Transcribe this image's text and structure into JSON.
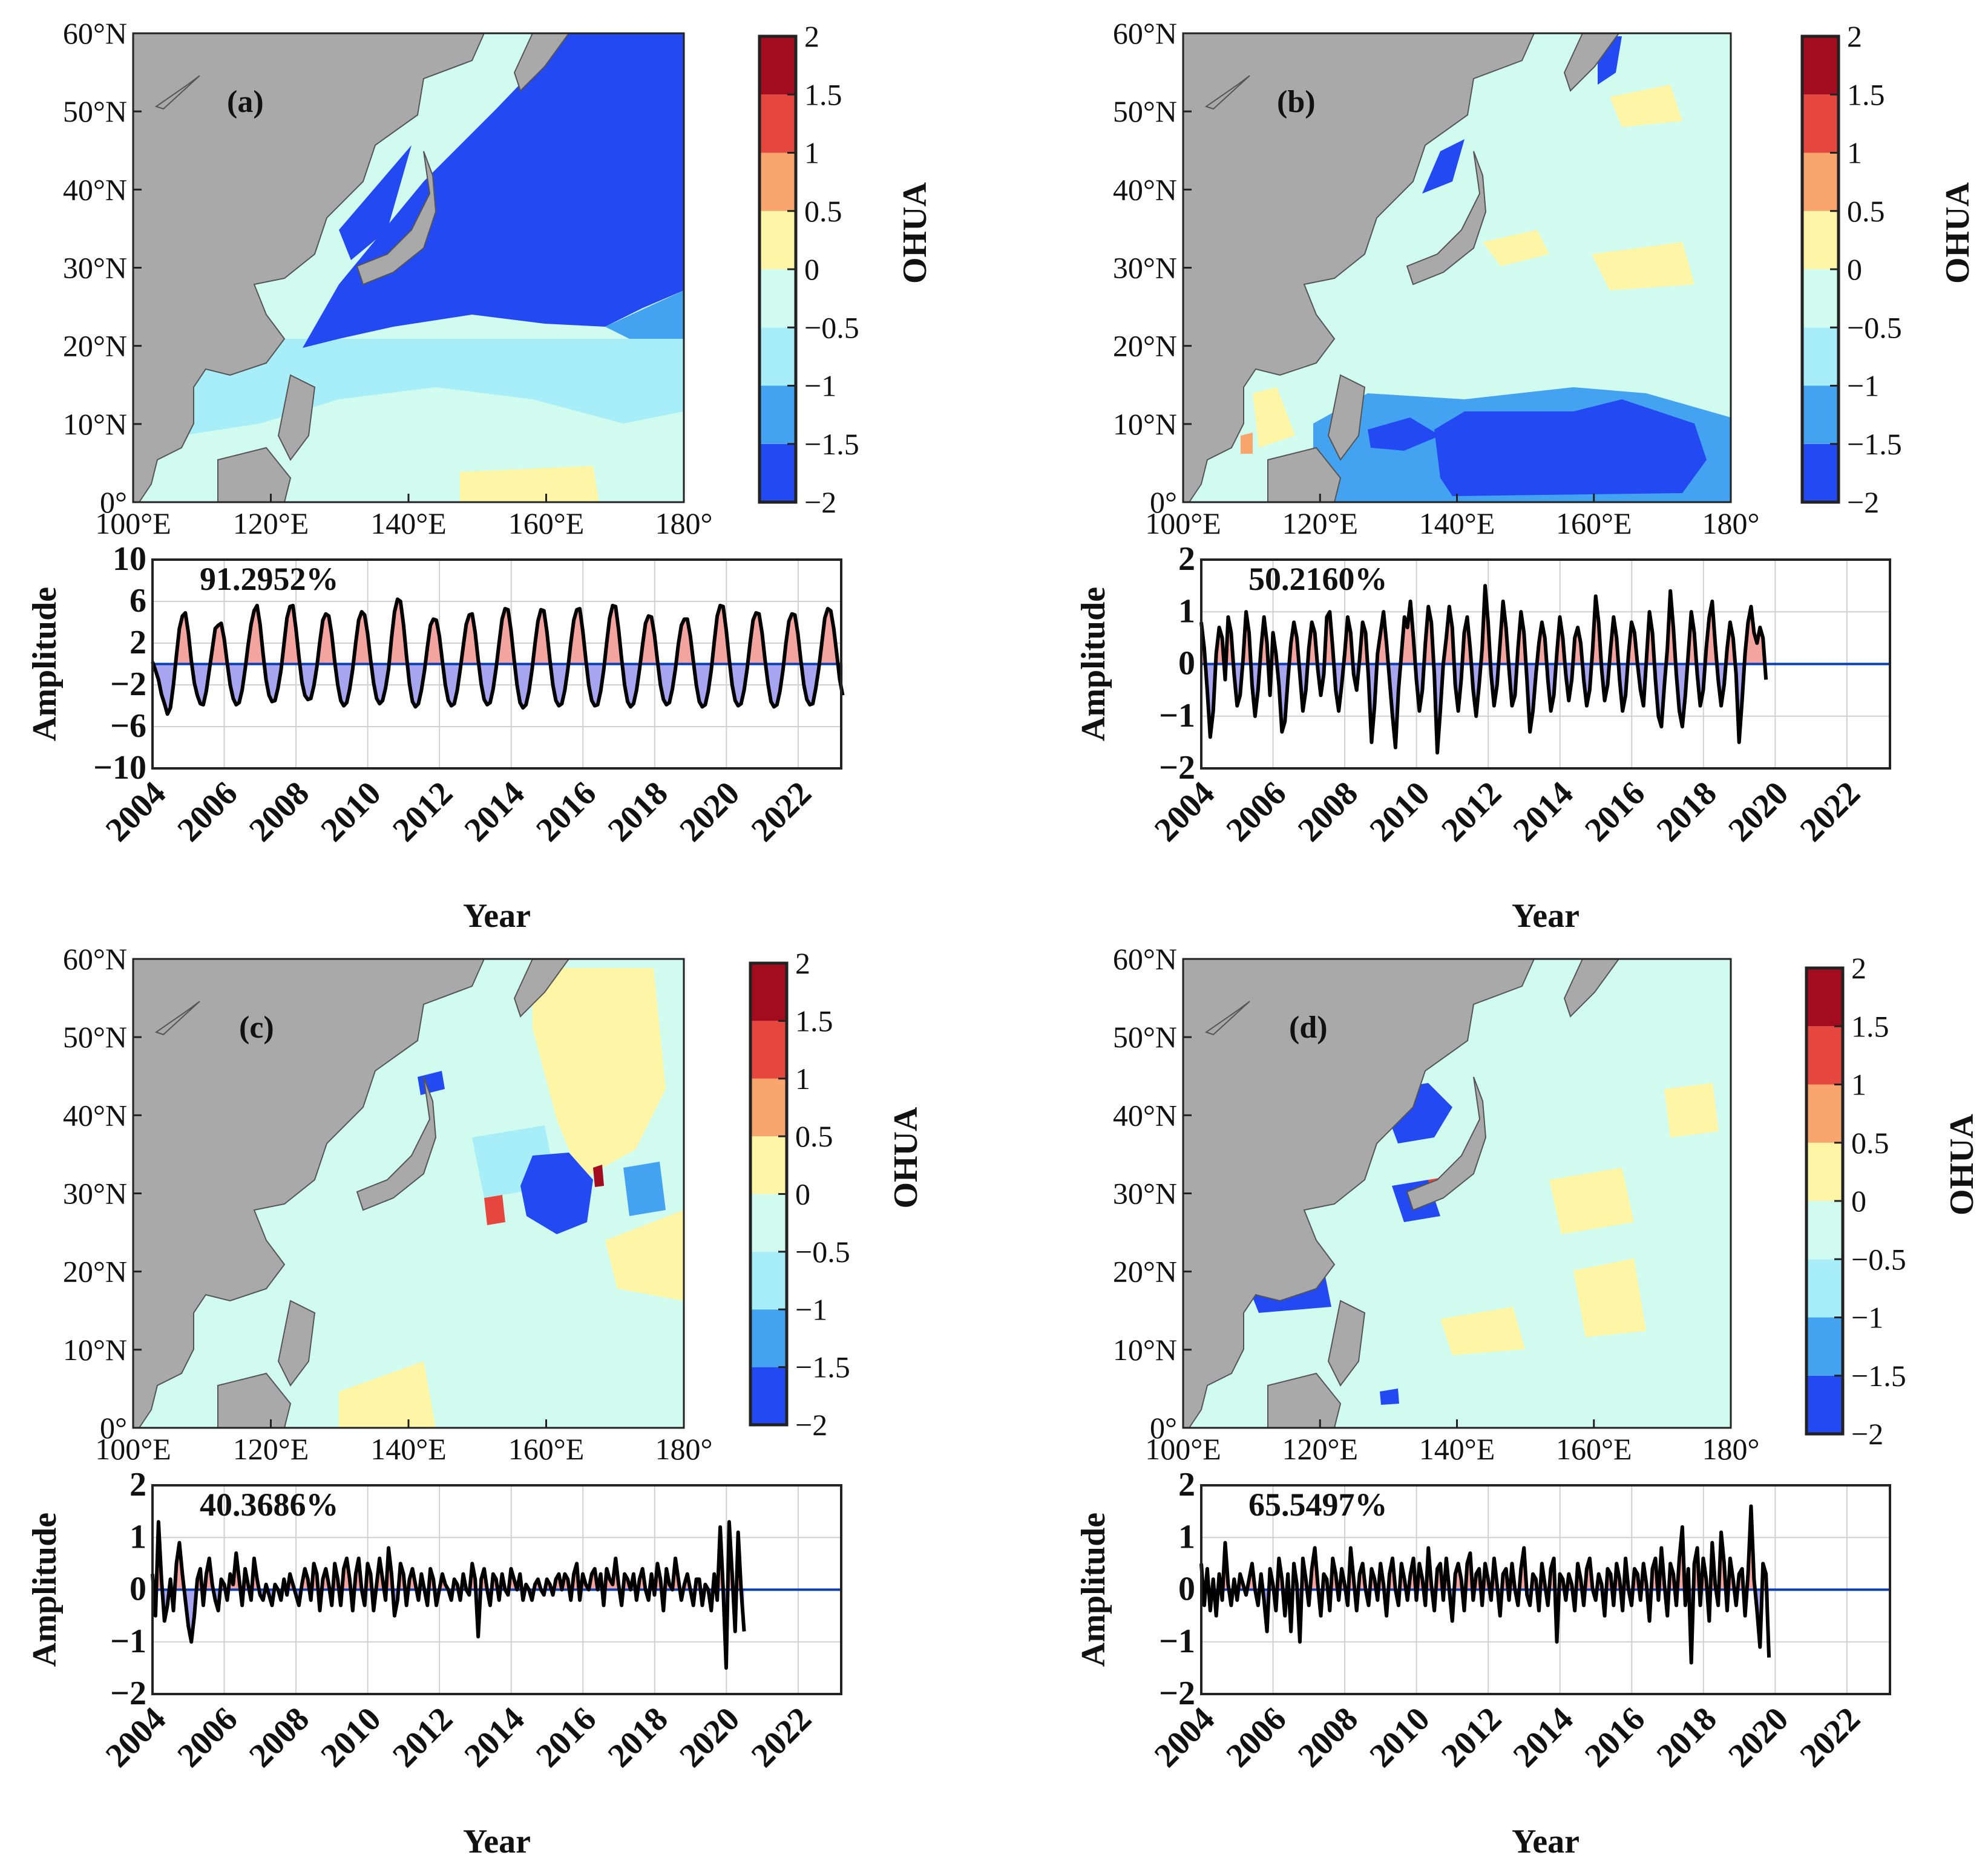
{
  "colors": {
    "land": "#a9a9a9",
    "ocean_nodata": "#ffffff",
    "levels": [
      "#2349f2",
      "#44a3f0",
      "#a7eef9",
      "#d2fbef",
      "#fff5a6",
      "#f9a56e",
      "#e5473e",
      "#a30b1e"
    ],
    "pos_fill": "#f3a49f",
    "neg_fill": "#a7a4f0",
    "line": "#000000",
    "zero_line": "#0b3db5"
  },
  "map_ticks": {
    "lon": [
      "100°E",
      "120°E",
      "140°E",
      "160°E",
      "180°"
    ],
    "lat": [
      "0°",
      "10°N",
      "20°N",
      "30°N",
      "40°N",
      "50°N",
      "60°N"
    ]
  },
  "colorbar": {
    "label": "OHUA",
    "ticks": [
      "−2",
      "−1.5",
      "−1",
      "−0.5",
      "0",
      "0.5",
      "1",
      "1.5",
      "2"
    ]
  },
  "chart_data": [
    {
      "type": "line",
      "panel_label": "(a)",
      "variance_text": "91.2952%",
      "xlabel": "Year",
      "ylabel": "Amplitude",
      "x_ticks": [
        "2004",
        "2006",
        "2008",
        "2010",
        "2012",
        "2014",
        "2016",
        "2018",
        "2020",
        "2022"
      ],
      "y_ticks": [
        "10",
        "6",
        "2",
        "−2",
        "−6",
        "−10"
      ],
      "ylim": [
        -10,
        10
      ],
      "xlim": [
        2004,
        2023.2
      ],
      "series": [
        {
          "start": 2004.0,
          "step": 0.0833,
          "values": [
            0.2,
            -0.6,
            -1.5,
            -2.9,
            -3.8,
            -4.8,
            -4.2,
            -2.0,
            0.8,
            3.4,
            4.6,
            4.9,
            3.0,
            0.3,
            -1.8,
            -3.0,
            -3.8,
            -3.9,
            -2.6,
            -0.6,
            1.4,
            3.4,
            3.7,
            3.9,
            2.4,
            0.1,
            -2.0,
            -3.3,
            -3.9,
            -3.7,
            -2.5,
            -0.5,
            1.8,
            3.8,
            5.1,
            5.6,
            3.8,
            1.0,
            -1.5,
            -3.0,
            -3.6,
            -3.5,
            -2.3,
            -0.6,
            1.9,
            4.4,
            5.5,
            5.6,
            3.4,
            0.7,
            -1.7,
            -3.0,
            -3.4,
            -3.3,
            -2.1,
            -0.3,
            2.1,
            4.2,
            4.8,
            4.6,
            2.8,
            0.2,
            -2.0,
            -3.5,
            -4.0,
            -3.7,
            -2.4,
            -0.5,
            2.0,
            4.2,
            5.0,
            4.7,
            2.9,
            0.4,
            -1.8,
            -3.3,
            -3.8,
            -3.5,
            -2.3,
            -0.5,
            2.5,
            5.0,
            6.2,
            6.0,
            3.8,
            0.8,
            -1.9,
            -3.6,
            -4.1,
            -3.8,
            -2.5,
            -0.7,
            1.6,
            3.7,
            4.3,
            4.2,
            2.7,
            0.3,
            -2.0,
            -3.5,
            -4.0,
            -3.8,
            -2.5,
            -0.5,
            1.7,
            3.8,
            4.7,
            4.8,
            3.0,
            0.4,
            -1.9,
            -3.4,
            -3.9,
            -3.7,
            -2.4,
            -0.4,
            2.0,
            4.3,
            5.3,
            5.2,
            3.2,
            0.5,
            -2.0,
            -3.7,
            -4.2,
            -3.9,
            -2.6,
            -0.6,
            1.9,
            4.1,
            5.2,
            5.1,
            3.1,
            0.4,
            -2.0,
            -3.5,
            -4.0,
            -3.8,
            -2.5,
            -0.5,
            2.0,
            4.2,
            5.2,
            5.3,
            3.2,
            0.5,
            -2.0,
            -3.5,
            -4.0,
            -3.9,
            -2.6,
            -0.6,
            2.0,
            4.4,
            5.6,
            5.5,
            3.3,
            0.5,
            -2.0,
            -3.6,
            -4.1,
            -3.8,
            -2.5,
            -0.5,
            1.8,
            3.9,
            4.6,
            4.5,
            2.8,
            0.3,
            -2.0,
            -3.4,
            -3.9,
            -3.7,
            -2.4,
            -0.5,
            1.9,
            3.7,
            4.3,
            4.3,
            2.7,
            0.3,
            -2.0,
            -3.6,
            -4.1,
            -3.9,
            -2.6,
            -0.6,
            2.1,
            4.6,
            5.6,
            5.5,
            3.3,
            0.5,
            -2.0,
            -3.5,
            -4.0,
            -3.8,
            -2.5,
            -0.5,
            2.0,
            4.2,
            4.9,
            4.8,
            3.0,
            0.4,
            -1.9,
            -3.6,
            -4.1,
            -3.9,
            -2.6,
            -0.6,
            2.0,
            4.1,
            4.8,
            4.7,
            2.9,
            0.3,
            -2.0,
            -3.4,
            -3.9,
            -3.8,
            -2.3,
            -0.4,
            2.0,
            4.4,
            5.3,
            5.1,
            3.4,
            1.0,
            -1.5,
            -3.0
          ]
        }
      ]
    },
    {
      "type": "line",
      "panel_label": "(b)",
      "variance_text": "50.2160%",
      "xlabel": "Year",
      "ylabel": "Amplitude",
      "x_ticks": [
        "2004",
        "2006",
        "2008",
        "2010",
        "2012",
        "2014",
        "2016",
        "2018",
        "2020",
        "2022"
      ],
      "y_ticks": [
        "2",
        "1",
        "0",
        "−1",
        "−2"
      ],
      "ylim": [
        -2,
        2
      ],
      "xlim": [
        2004,
        2023.2
      ],
      "series": [
        {
          "start": 2004.0,
          "step": 0.0833,
          "values": [
            0.8,
            0.3,
            -0.5,
            -1.4,
            -0.9,
            0.2,
            0.7,
            0.5,
            -0.3,
            0.9,
            0.6,
            -0.2,
            -0.8,
            -0.6,
            0.1,
            1.0,
            0.6,
            -0.4,
            -1.0,
            -0.5,
            0.3,
            0.9,
            0.4,
            -0.6,
            0.6,
            0.2,
            -0.4,
            -1.3,
            -1.1,
            -0.3,
            0.4,
            0.8,
            0.5,
            -0.2,
            -0.9,
            -0.5,
            0.3,
            0.8,
            0.6,
            -0.1,
            -0.6,
            -0.2,
            0.9,
            1.0,
            0.3,
            -0.5,
            -0.9,
            -0.4,
            0.2,
            0.9,
            0.6,
            -0.2,
            -0.5,
            0.1,
            0.8,
            0.6,
            -0.3,
            -1.5,
            -0.8,
            0.2,
            0.6,
            1.0,
            0.4,
            -0.3,
            -1.0,
            -1.6,
            -0.5,
            0.2,
            0.9,
            0.7,
            1.2,
            0.5,
            -0.3,
            -0.9,
            -0.5,
            0.4,
            1.1,
            0.8,
            -0.2,
            -1.7,
            -0.9,
            0.0,
            0.5,
            1.1,
            0.7,
            -0.4,
            -0.9,
            -0.3,
            0.6,
            0.9,
            0.3,
            -0.5,
            -1.0,
            -0.4,
            0.3,
            1.5,
            0.8,
            -0.2,
            -0.8,
            -0.4,
            0.4,
            1.2,
            0.7,
            -0.1,
            -0.8,
            -0.6,
            0.3,
            1.0,
            0.6,
            -0.3,
            -1.3,
            -0.9,
            -0.2,
            0.4,
            0.8,
            0.5,
            -0.3,
            -0.9,
            -0.6,
            0.2,
            0.9,
            0.5,
            -0.2,
            -0.7,
            -0.3,
            0.5,
            0.7,
            0.4,
            -0.3,
            -0.8,
            -0.5,
            0.3,
            1.3,
            0.8,
            -0.1,
            -0.7,
            -0.4,
            0.3,
            0.9,
            0.5,
            -0.3,
            -0.9,
            -0.6,
            0.2,
            0.8,
            0.6,
            0.0,
            -0.5,
            -0.8,
            0.1,
            1.0,
            0.6,
            -0.3,
            -1.0,
            -1.2,
            -0.4,
            0.3,
            1.4,
            0.7,
            -0.2,
            -0.9,
            -1.2,
            -0.6,
            0.2,
            1.0,
            0.6,
            -0.2,
            -0.8,
            -0.5,
            0.3,
            0.9,
            1.2,
            0.4,
            -0.3,
            -0.8,
            -0.4,
            0.3,
            0.8,
            0.5,
            -0.2,
            -1.5,
            -0.7,
            0.2,
            0.8,
            1.1,
            0.6,
            0.4,
            0.7,
            0.5,
            -0.3
          ]
        }
      ]
    },
    {
      "type": "line",
      "panel_label": "(c)",
      "variance_text": "40.3686%",
      "xlabel": "Year",
      "ylabel": "Amplitude",
      "x_ticks": [
        "2004",
        "2006",
        "2008",
        "2010",
        "2012",
        "2014",
        "2016",
        "2018",
        "2020",
        "2022"
      ],
      "y_ticks": [
        "2",
        "1",
        "0",
        "−1",
        "−2"
      ],
      "ylim": [
        -2,
        2
      ],
      "xlim": [
        2004,
        2023.2
      ],
      "series": [
        {
          "start": 2004.0,
          "step": 0.0833,
          "values": [
            0.3,
            -0.5,
            1.3,
            0.2,
            -0.6,
            -0.3,
            0.2,
            -0.4,
            0.5,
            0.9,
            0.3,
            -0.2,
            -0.7,
            -1.0,
            -0.5,
            0.2,
            0.4,
            -0.3,
            0.3,
            0.6,
            0.1,
            -0.2,
            -0.4,
            0.2,
            0.1,
            -0.2,
            0.3,
            0.1,
            0.7,
            0.2,
            -0.3,
            0.4,
            0.1,
            -0.2,
            0.6,
            0.2,
            -0.1,
            -0.2,
            0.1,
            -0.1,
            -0.3,
            0.1,
            0.0,
            -0.2,
            0.2,
            -0.1,
            0.3,
            0.1,
            -0.1,
            -0.3,
            0.1,
            0.4,
            0.2,
            -0.2,
            0.5,
            0.3,
            -0.4,
            0.2,
            0.4,
            0.1,
            -0.3,
            0.5,
            0.2,
            -0.3,
            0.4,
            0.6,
            0.2,
            -0.4,
            0.3,
            0.6,
            0.0,
            -0.3,
            0.5,
            0.3,
            -0.4,
            0.1,
            0.6,
            0.2,
            -0.2,
            0.8,
            0.3,
            -0.5,
            -0.2,
            0.5,
            0.3,
            -0.3,
            0.2,
            0.4,
            0.1,
            -0.2,
            0.3,
            0.0,
            -0.3,
            0.4,
            0.2,
            -0.3,
            0.0,
            0.3,
            0.1,
            0.0,
            -0.2,
            0.2,
            0.1,
            -0.2,
            0.3,
            0.0,
            -0.1,
            0.5,
            0.2,
            -0.9,
            0.2,
            0.4,
            0.0,
            -0.3,
            0.3,
            0.2,
            -0.2,
            0.3,
            0.0,
            -0.1,
            0.4,
            0.2,
            0.0,
            0.3,
            -0.2,
            0.1,
            0.0,
            -0.2,
            0.1,
            0.2,
            0.0,
            -0.1,
            0.2,
            0.1,
            -0.1,
            0.2,
            0.3,
            0.0,
            0.3,
            0.2,
            -0.2,
            0.3,
            0.5,
            -0.2,
            0.3,
            0.1,
            0.0,
            0.3,
            0.4,
            0.0,
            0.3,
            -0.3,
            0.4,
            0.2,
            0.1,
            0.6,
            0.1,
            -0.3,
            0.3,
            0.2,
            0.0,
            0.3,
            -0.2,
            0.2,
            0.4,
            0.0,
            -0.2,
            0.3,
            -0.1,
            0.5,
            0.2,
            -0.4,
            0.4,
            0.1,
            0.0,
            0.6,
            0.2,
            -0.2,
            0.1,
            0.3,
            0.0,
            -0.3,
            0.2,
            0.2,
            -0.3,
            0.1,
            0.0,
            -0.4,
            0.3,
            -0.2,
            1.2,
            0.0,
            -1.5,
            1.3,
            0.3,
            -0.8,
            1.1,
            0.0,
            -0.8
          ]
        }
      ]
    },
    {
      "type": "line",
      "panel_label": "(d)",
      "variance_text": "65.5497%",
      "xlabel": "Year",
      "ylabel": "Amplitude",
      "x_ticks": [
        "2004",
        "2006",
        "2008",
        "2010",
        "2012",
        "2014",
        "2016",
        "2018",
        "2020",
        "2022"
      ],
      "y_ticks": [
        "2",
        "1",
        "0",
        "−1",
        "−2"
      ],
      "ylim": [
        -2,
        2
      ],
      "xlim": [
        2004,
        2023.2
      ],
      "series": [
        {
          "start": 2004.0,
          "step": 0.0833,
          "values": [
            0.5,
            -0.3,
            0.4,
            -0.4,
            0.2,
            -0.5,
            0.3,
            -0.2,
            0.9,
            0.1,
            -0.3,
            0.2,
            -0.2,
            0.3,
            0.1,
            -0.1,
            0.2,
            0.5,
            0.0,
            -0.3,
            0.3,
            -0.2,
            -0.8,
            0.4,
            0.1,
            -0.4,
            0.6,
            0.2,
            -0.5,
            0.3,
            -0.8,
            0.5,
            0.1,
            -1.0,
            0.6,
            0.2,
            -0.3,
            0.4,
            0.8,
            0.1,
            -0.5,
            0.3,
            0.2,
            -0.4,
            0.6,
            0.3,
            -0.2,
            0.4,
            0.1,
            -0.3,
            0.8,
            0.2,
            -0.4,
            0.3,
            0.5,
            0.0,
            -0.3,
            0.4,
            0.2,
            -0.2,
            0.5,
            0.1,
            -0.5,
            0.3,
            0.6,
            0.0,
            -0.3,
            0.5,
            0.2,
            -0.2,
            0.3,
            0.6,
            -0.2,
            0.5,
            0.2,
            -0.3,
            0.8,
            0.1,
            -0.4,
            0.4,
            0.5,
            -0.2,
            0.6,
            0.0,
            -0.6,
            0.3,
            0.5,
            0.2,
            -0.4,
            0.5,
            0.7,
            -0.2,
            0.3,
            0.4,
            -0.3,
            0.5,
            0.2,
            -0.2,
            0.6,
            0.1,
            -0.5,
            0.3,
            0.4,
            -0.2,
            0.5,
            0.0,
            -0.3,
            0.4,
            0.8,
            -0.1,
            -0.3,
            0.3,
            0.2,
            -0.4,
            0.5,
            0.1,
            -0.3,
            0.4,
            0.6,
            -1.0,
            0.3,
            0.2,
            -0.2,
            0.3,
            0.1,
            -0.4,
            0.5,
            0.2,
            -0.3,
            0.4,
            0.6,
            0.0,
            -0.2,
            0.3,
            0.1,
            -0.5,
            0.4,
            0.3,
            -0.3,
            0.5,
            0.2,
            -0.4,
            0.6,
            0.0,
            -0.3,
            0.4,
            0.3,
            -0.2,
            0.5,
            0.1,
            -0.6,
            0.4,
            0.6,
            -0.2,
            0.8,
            0.1,
            -0.5,
            0.5,
            0.3,
            -0.3,
            0.6,
            1.2,
            -0.3,
            0.4,
            -1.4,
            0.5,
            0.8,
            -0.3,
            0.6,
            0.2,
            -0.6,
            0.9,
            0.1,
            -0.3,
            1.1,
            0.5,
            -0.4,
            0.6,
            0.2,
            -0.3,
            0.3,
            0.4,
            -0.5,
            0.3,
            1.6,
            0.2,
            -0.4,
            -1.1,
            0.5,
            0.3,
            -1.3
          ]
        }
      ]
    }
  ]
}
